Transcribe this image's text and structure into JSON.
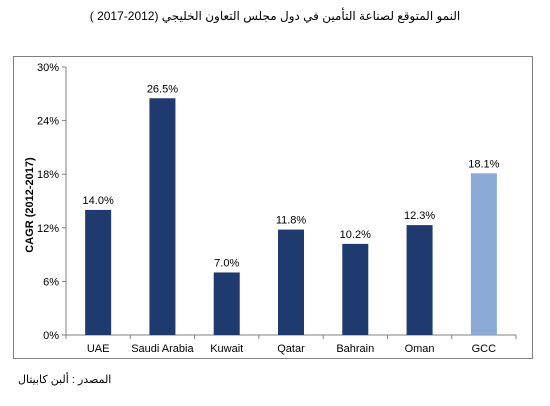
{
  "title": "النمو المتوقع لصناعة التأمين في دول مجلس التعاون الخليجي (2012-2017 )",
  "source": "المصدر : ألبن كابيتال",
  "colors": {
    "bar": "#1f3a6e",
    "highlight": "#8aa9d4",
    "axis": "#808080"
  },
  "chart_data": {
    "type": "bar",
    "title": "النمو المتوقع لصناعة التأمين في دول مجلس التعاون الخليجي (2012-2017 )",
    "ylabel": "CAGR (2012-2017)",
    "xlabel": "",
    "ylim": [
      0,
      30
    ],
    "yticks": [
      0,
      6,
      12,
      18,
      24,
      30
    ],
    "ytick_labels": [
      "0%",
      "6%",
      "12%",
      "18%",
      "24%",
      "30%"
    ],
    "grid": false,
    "categories": [
      "UAE",
      "Saudi Arabia",
      "Kuwait",
      "Qatar",
      "Bahrain",
      "Oman",
      "GCC"
    ],
    "values": [
      14.0,
      26.5,
      7.0,
      11.8,
      10.2,
      12.3,
      18.1
    ],
    "value_labels": [
      "14.0%",
      "26.5%",
      "7.0%",
      "11.8%",
      "10.2%",
      "12.3%",
      "18.1%"
    ],
    "highlight_index": 6
  }
}
